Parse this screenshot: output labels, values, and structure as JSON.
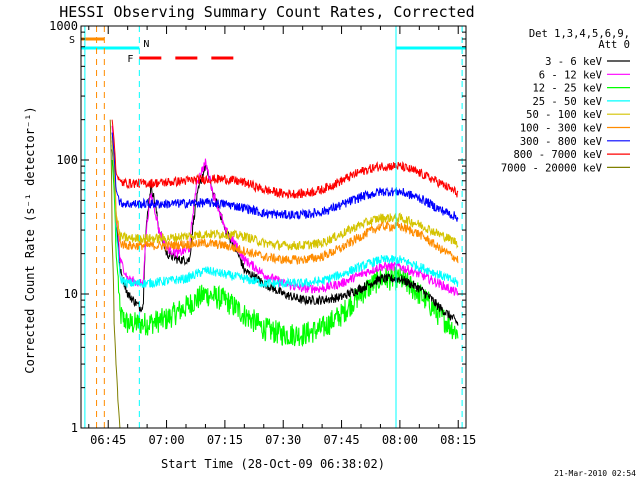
{
  "chart_data": {
    "type": "line",
    "title": "HESSI Observing Summary Count Rates, Corrected",
    "xlabel": "Start Time (28-Oct-09 06:38:02)",
    "ylabel": "Corrected Count Rate (s⁻¹ detector⁻¹)",
    "yscale": "log",
    "ylim": [
      1,
      1000
    ],
    "xlim": [
      "06:38",
      "08:17"
    ],
    "x_ticks": [
      "06:45",
      "07:00",
      "07:15",
      "07:30",
      "07:45",
      "08:00",
      "08:15"
    ],
    "y_ticks": [
      "1",
      "10",
      "100",
      "1000"
    ],
    "legend_title": [
      "Det 1,3,4,5,6,9,",
      "Att 0"
    ],
    "legend_position": "right",
    "series": [
      {
        "name": "3 - 6 keV",
        "color": "#000000",
        "x": [
          "06:46",
          "06:47",
          "06:48",
          "06:50",
          "06:53",
          "06:54",
          "06:56",
          "06:58",
          "07:00",
          "07:03",
          "07:06",
          "07:08",
          "07:10",
          "07:12",
          "07:15",
          "07:20",
          "07:25",
          "07:30",
          "07:35",
          "07:40",
          "07:45",
          "07:50",
          "07:55",
          "08:00",
          "08:05",
          "08:10",
          "08:15"
        ],
        "y": [
          120,
          35,
          15,
          10,
          8,
          8,
          65,
          30,
          20,
          18,
          18,
          55,
          90,
          55,
          30,
          15,
          12,
          10,
          9,
          9,
          9.5,
          11,
          13,
          13,
          11,
          8,
          6
        ]
      },
      {
        "name": "6 - 12 keV",
        "color": "#ff00ff",
        "x": [
          "06:46",
          "06:47",
          "06:48",
          "06:50",
          "06:53",
          "06:54",
          "06:56",
          "06:58",
          "07:00",
          "07:03",
          "07:06",
          "07:08",
          "07:10",
          "07:12",
          "07:15",
          "07:20",
          "07:25",
          "07:30",
          "07:35",
          "07:40",
          "07:45",
          "07:50",
          "07:55",
          "08:00",
          "08:05",
          "08:10",
          "08:15"
        ],
        "y": [
          180,
          40,
          18,
          13,
          12,
          12,
          55,
          30,
          22,
          20,
          22,
          70,
          95,
          55,
          30,
          18,
          14,
          12,
          11,
          11,
          12,
          14,
          16,
          16,
          14,
          12,
          10
        ]
      },
      {
        "name": "12 - 25 keV",
        "color": "#00ff00",
        "x": [
          "06:46",
          "06:47",
          "06:48",
          "06:50",
          "06:55",
          "07:00",
          "07:05",
          "07:10",
          "07:15",
          "07:20",
          "07:25",
          "07:30",
          "07:35",
          "07:40",
          "07:45",
          "07:50",
          "07:55",
          "08:00",
          "08:05",
          "08:10",
          "08:15"
        ],
        "y": [
          100,
          20,
          7,
          6,
          6,
          6.5,
          8,
          10,
          9,
          7,
          5.5,
          5,
          5,
          5.5,
          7,
          10,
          13,
          13,
          10,
          7,
          5
        ]
      },
      {
        "name": "25 - 50 keV",
        "color": "#00ffff",
        "x": [
          "06:46",
          "06:47",
          "06:48",
          "06:50",
          "06:55",
          "07:00",
          "07:05",
          "07:10",
          "07:15",
          "07:20",
          "07:25",
          "07:30",
          "07:35",
          "07:40",
          "07:45",
          "07:50",
          "07:55",
          "08:00",
          "08:05",
          "08:10",
          "08:15"
        ],
        "y": [
          130,
          30,
          13,
          12,
          12,
          12.5,
          13,
          15,
          14,
          13,
          12,
          12,
          12,
          12.5,
          14,
          16,
          18,
          18,
          16,
          14,
          12
        ]
      },
      {
        "name": "50 - 100 keV",
        "color": "#d4c300",
        "x": [
          "06:46",
          "06:47",
          "06:48",
          "06:50",
          "06:55",
          "07:00",
          "07:05",
          "07:10",
          "07:15",
          "07:20",
          "07:25",
          "07:30",
          "07:35",
          "07:40",
          "07:45",
          "07:50",
          "07:55",
          "08:00",
          "08:05",
          "08:10",
          "08:15"
        ],
        "y": [
          150,
          40,
          27,
          26,
          26,
          26,
          27,
          28,
          28,
          27,
          24,
          23,
          23,
          24,
          28,
          33,
          37,
          37,
          33,
          28,
          24
        ]
      },
      {
        "name": "100 - 300 keV",
        "color": "#ff8c00",
        "x": [
          "06:46",
          "06:47",
          "06:48",
          "06:50",
          "06:55",
          "07:00",
          "07:05",
          "07:10",
          "07:15",
          "07:20",
          "07:25",
          "07:30",
          "07:35",
          "07:40",
          "07:45",
          "07:50",
          "07:55",
          "08:00",
          "08:05",
          "08:10",
          "08:15"
        ],
        "y": [
          140,
          35,
          24,
          23,
          23,
          23,
          23.5,
          24,
          23,
          21,
          19,
          18,
          18,
          19,
          22,
          27,
          32,
          32,
          28,
          22,
          18
        ]
      },
      {
        "name": "300 - 800 keV",
        "color": "#0000ff",
        "x": [
          "06:46",
          "06:47",
          "06:48",
          "06:50",
          "06:55",
          "07:00",
          "07:05",
          "07:10",
          "07:15",
          "07:20",
          "07:25",
          "07:30",
          "07:35",
          "07:40",
          "07:45",
          "07:50",
          "07:55",
          "08:00",
          "08:05",
          "08:10",
          "08:15"
        ],
        "y": [
          160,
          60,
          48,
          47,
          47,
          47,
          47.5,
          48,
          47,
          44,
          40,
          39,
          39,
          41,
          46,
          53,
          58,
          58,
          52,
          43,
          37
        ]
      },
      {
        "name": "800 - 7000 keV",
        "color": "#ff0000",
        "x": [
          "06:46",
          "06:47",
          "06:48",
          "06:50",
          "06:55",
          "07:00",
          "07:05",
          "07:10",
          "07:15",
          "07:20",
          "07:25",
          "07:30",
          "07:35",
          "07:40",
          "07:45",
          "07:50",
          "07:55",
          "08:00",
          "08:05",
          "08:10",
          "08:15"
        ],
        "y": [
          200,
          80,
          68,
          67,
          67,
          68,
          70,
          72,
          72,
          68,
          60,
          56,
          56,
          60,
          70,
          82,
          90,
          90,
          80,
          68,
          56
        ]
      },
      {
        "name": "7000 - 20000 keV",
        "color": "#808000",
        "x": [
          "06:45.5",
          "06:46",
          "06:46.5",
          "06:47",
          "06:47.5",
          "06:48"
        ],
        "y": [
          200,
          25,
          6,
          3,
          1.6,
          1
        ]
      }
    ],
    "flags": [
      {
        "label": "S",
        "color": "#ff8c00",
        "style": "solid",
        "segments": [
          [
            "06:38",
            "06:44"
          ]
        ]
      },
      {
        "label": "N",
        "color": "#00ffff",
        "style": "solid",
        "segments": [
          [
            "06:38",
            "06:53"
          ],
          [
            "07:59",
            "08:17"
          ]
        ]
      },
      {
        "label": "F",
        "color": "#ff0000",
        "style": "dashed",
        "segments": [
          [
            "06:53",
            "07:18"
          ]
        ]
      }
    ],
    "vertical_lines": [
      {
        "x": "06:39",
        "color": "#00ffff",
        "style": "solid"
      },
      {
        "x": "06:42",
        "color": "#ff8c00",
        "style": "dashed"
      },
      {
        "x": "06:44",
        "color": "#ff8c00",
        "style": "dashed"
      },
      {
        "x": "06:53",
        "color": "#00ffff",
        "style": "dashed"
      },
      {
        "x": "07:59",
        "color": "#00ffff",
        "style": "solid"
      },
      {
        "x": "08:16",
        "color": "#00ffff",
        "style": "dashed"
      }
    ]
  },
  "footer": {
    "timestamp": "21-Mar-2010 02:54"
  }
}
